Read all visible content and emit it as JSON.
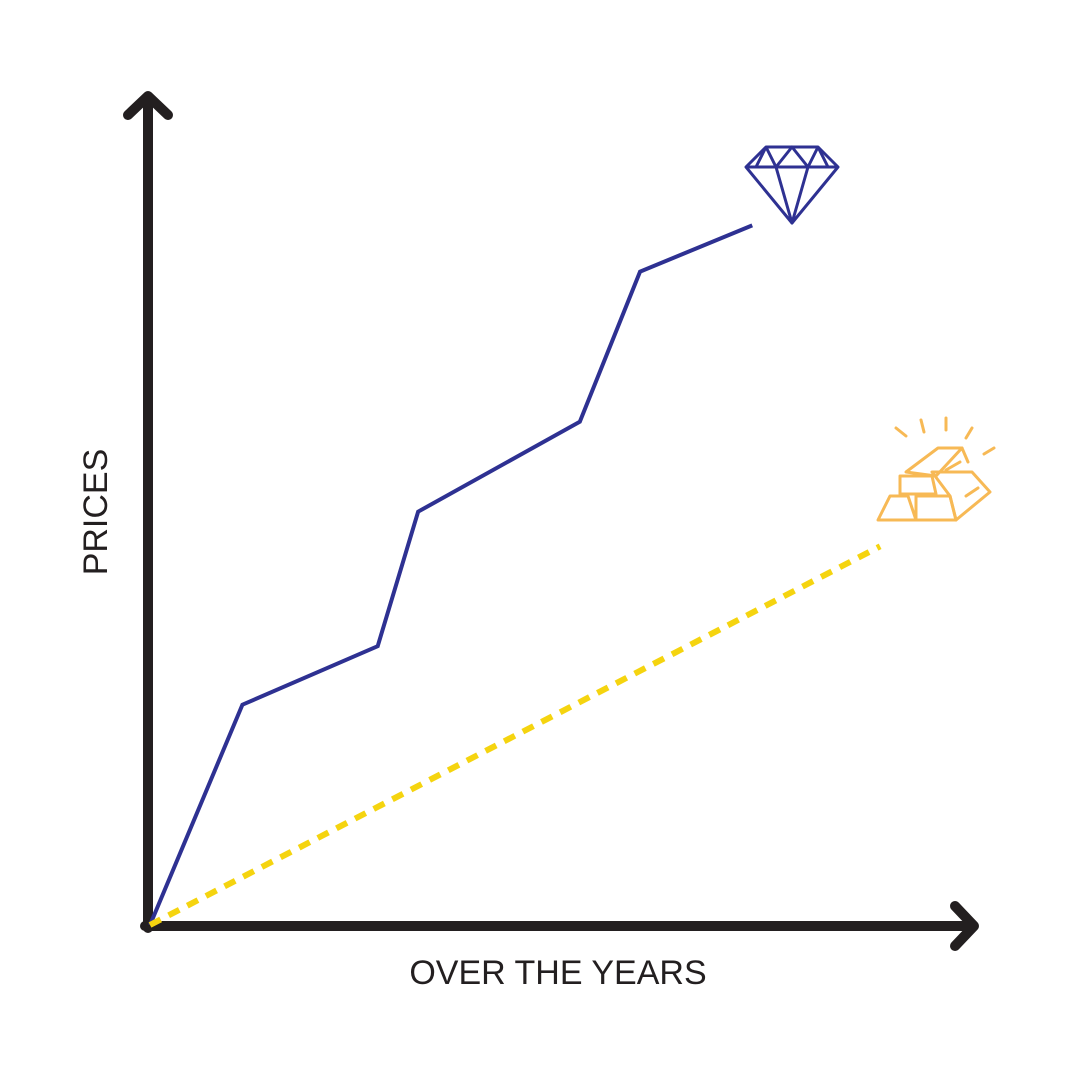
{
  "chart_data": {
    "type": "line",
    "ylabel": "PRICES",
    "xlabel": "OVER THE YEARS",
    "xlim": [
      0,
      100
    ],
    "ylim": [
      0,
      100
    ],
    "series": [
      {
        "color": "#2e3192",
        "dashed": false,
        "x": [
          0,
          11.2,
          27.6,
          32.5,
          52.1,
          59.4,
          73.0
        ],
        "values": [
          0,
          26.7,
          33.8,
          50.1,
          61.0,
          79.2,
          84.8
        ]
      },
      {
        "color": "#f5d40f",
        "dashed": true,
        "x": [
          0,
          88.5
        ],
        "values": [
          0,
          45.9
        ]
      }
    ]
  }
}
